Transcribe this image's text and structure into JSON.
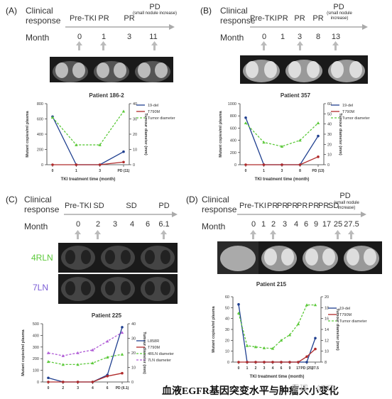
{
  "panels": {
    "A": {
      "letter": "(A)",
      "clinical_label": "Clinical",
      "response_label": "response",
      "month_label": "Month",
      "responses": [
        "Pre-TKI",
        "PR",
        "PR",
        "PD"
      ],
      "response_note": "(small nodule increase)",
      "months": [
        "0",
        "1",
        "3",
        "11"
      ],
      "patient_title": "Patient 186-2"
    },
    "B": {
      "letter": "(B)",
      "clinical_label": "Clinical",
      "response_label": "response",
      "month_label": "Month",
      "responses": [
        "Pre-TKI",
        "PR",
        "PR",
        "PR",
        "PD"
      ],
      "response_note": "(small nodule increase)",
      "months": [
        "0",
        "1",
        "3",
        "8",
        "13"
      ],
      "patient_title": "Patient 357"
    },
    "C": {
      "letter": "(C)",
      "clinical_label": "Clinical",
      "response_label": "response",
      "month_label": "Month",
      "responses": [
        "Pre-TKI",
        "SD",
        "SD",
        "PD"
      ],
      "months": [
        "0",
        "2",
        "3",
        "4",
        "6",
        "6.1"
      ],
      "row_labels": [
        "4RLN",
        "7LN"
      ],
      "patient_title": "Patient 225"
    },
    "D": {
      "letter": "(D)",
      "clinical_label": "Clinical",
      "response_label": "response",
      "month_label": "Month",
      "responses": [
        "Pre-TKI",
        "PR",
        "PR",
        "PR",
        "PR",
        "PR",
        "PR",
        "SD",
        "PD"
      ],
      "response_note": "(small nodule increase)",
      "months": [
        "0",
        "1",
        "2",
        "3",
        "4",
        "6",
        "9",
        "17",
        "25",
        "27.5"
      ],
      "patient_title": "Patient 215"
    }
  },
  "caption": "血液EGFR基因突变水平与肿瘤大小变化",
  "watermark": "雪球 · ATT8",
  "colors": {
    "del19": "#1f3f8f",
    "t790m": "#b02a2a",
    "tumor": "#5cc93a",
    "ln7": "#b05cd6",
    "arrow": "#b9b9b9"
  },
  "chart_data": [
    {
      "type": "line",
      "title": "Patient 186-2",
      "xlabel": "TKI treatment time (month)",
      "ylabel": "Mutant copies/ml plasma",
      "y2label": "Tumour diameter (mm)",
      "categories": [
        "0",
        "1",
        "3",
        "PD (11)"
      ],
      "ylim": [
        0,
        800
      ],
      "yticks": [
        0,
        200,
        400,
        600,
        800
      ],
      "y2lim": [
        0,
        40
      ],
      "y2ticks": [
        0,
        10,
        20,
        30,
        40
      ],
      "legend_position": "right",
      "series": [
        {
          "name": "19-del",
          "axis": "left",
          "color": "#1f3f8f",
          "dash": false,
          "values": [
            630,
            0,
            0,
            170
          ]
        },
        {
          "name": "T790M",
          "axis": "left",
          "color": "#b02a2a",
          "dash": false,
          "values": [
            0,
            0,
            0,
            35
          ]
        },
        {
          "name": "Tumor diameter",
          "axis": "right",
          "color": "#5cc93a",
          "dash": true,
          "values": [
            31,
            13,
            13,
            35
          ]
        }
      ]
    },
    {
      "type": "line",
      "title": "Patient 357",
      "xlabel": "TKI treatment time (month)",
      "ylabel": "Mutant copies/ml plasma",
      "y2label": "Tumour diameter (mm)",
      "categories": [
        "0",
        "1",
        "3",
        "8",
        "PD (13)"
      ],
      "ylim": [
        0,
        1000
      ],
      "yticks": [
        0,
        200,
        400,
        600,
        800,
        1000
      ],
      "y2lim": [
        0,
        60
      ],
      "y2ticks": [
        0,
        10,
        20,
        30,
        40,
        50,
        60
      ],
      "legend_position": "right",
      "series": [
        {
          "name": "19-del",
          "axis": "left",
          "color": "#1f3f8f",
          "dash": false,
          "values": [
            770,
            0,
            0,
            0,
            470
          ]
        },
        {
          "name": "T790M",
          "axis": "left",
          "color": "#b02a2a",
          "dash": false,
          "values": [
            0,
            0,
            0,
            0,
            130
          ]
        },
        {
          "name": "Tumor diameter",
          "axis": "right",
          "color": "#5cc93a",
          "dash": true,
          "values": [
            41,
            22,
            18,
            24,
            41
          ]
        }
      ]
    },
    {
      "type": "line",
      "title": "Patient 225",
      "xlabel": "",
      "ylabel": "Mutant copies/ml plasma",
      "y2label": "Tumour diameter (mm)",
      "categories": [
        "0",
        "2",
        "3",
        "4",
        "6",
        "PD (6.1)"
      ],
      "ylim": [
        0,
        500
      ],
      "yticks": [
        0,
        100,
        200,
        300,
        400,
        500
      ],
      "y2lim": [
        0,
        40
      ],
      "y2ticks": [
        0,
        10,
        20,
        30,
        40
      ],
      "legend_position": "right",
      "series": [
        {
          "name": "L858R",
          "axis": "left",
          "color": "#1f3f8f",
          "dash": false,
          "values": [
            35,
            0,
            0,
            0,
            60,
            470
          ]
        },
        {
          "name": "T790M",
          "axis": "left",
          "color": "#b02a2a",
          "dash": false,
          "values": [
            0,
            0,
            0,
            0,
            50,
            75
          ]
        },
        {
          "name": "4RLN diameter",
          "axis": "right",
          "color": "#5cc93a",
          "dash": true,
          "values": [
            14,
            12,
            12,
            13,
            17,
            19
          ]
        },
        {
          "name": "7LN diameter",
          "axis": "right",
          "color": "#b05cd6",
          "dash": true,
          "values": [
            20,
            18,
            20,
            22,
            28,
            34
          ]
        }
      ]
    },
    {
      "type": "line",
      "title": "Patient 215",
      "xlabel": "TKI treatment time (month)",
      "ylabel": "Mutant copies/ml plasma",
      "y2label": "Tumour diameter (mm)",
      "categories": [
        "0",
        "1",
        "2",
        "3",
        "4",
        "6",
        "9",
        "17",
        "PD (25)",
        "27.5"
      ],
      "ylim": [
        0,
        60
      ],
      "yticks": [
        0,
        10,
        20,
        30,
        40,
        50,
        60
      ],
      "y2lim": [
        8,
        20
      ],
      "y2ticks": [
        8,
        10,
        12,
        14,
        16,
        18,
        20
      ],
      "legend_position": "right",
      "series": [
        {
          "name": "19-del",
          "axis": "left",
          "color": "#1f3f8f",
          "dash": false,
          "values": [
            53,
            0,
            0,
            0,
            0,
            0,
            0,
            0,
            0,
            22
          ]
        },
        {
          "name": "T790M",
          "axis": "left",
          "color": "#b02a2a",
          "dash": false,
          "values": [
            0,
            0,
            0,
            0,
            0,
            0,
            0,
            0,
            5,
            12
          ]
        },
        {
          "name": "Tumor diameter",
          "axis": "right",
          "color": "#5cc93a",
          "dash": true,
          "values": [
            17,
            11,
            10.8,
            10.6,
            10.5,
            12,
            13,
            15,
            18.5,
            18.5
          ]
        }
      ]
    }
  ]
}
